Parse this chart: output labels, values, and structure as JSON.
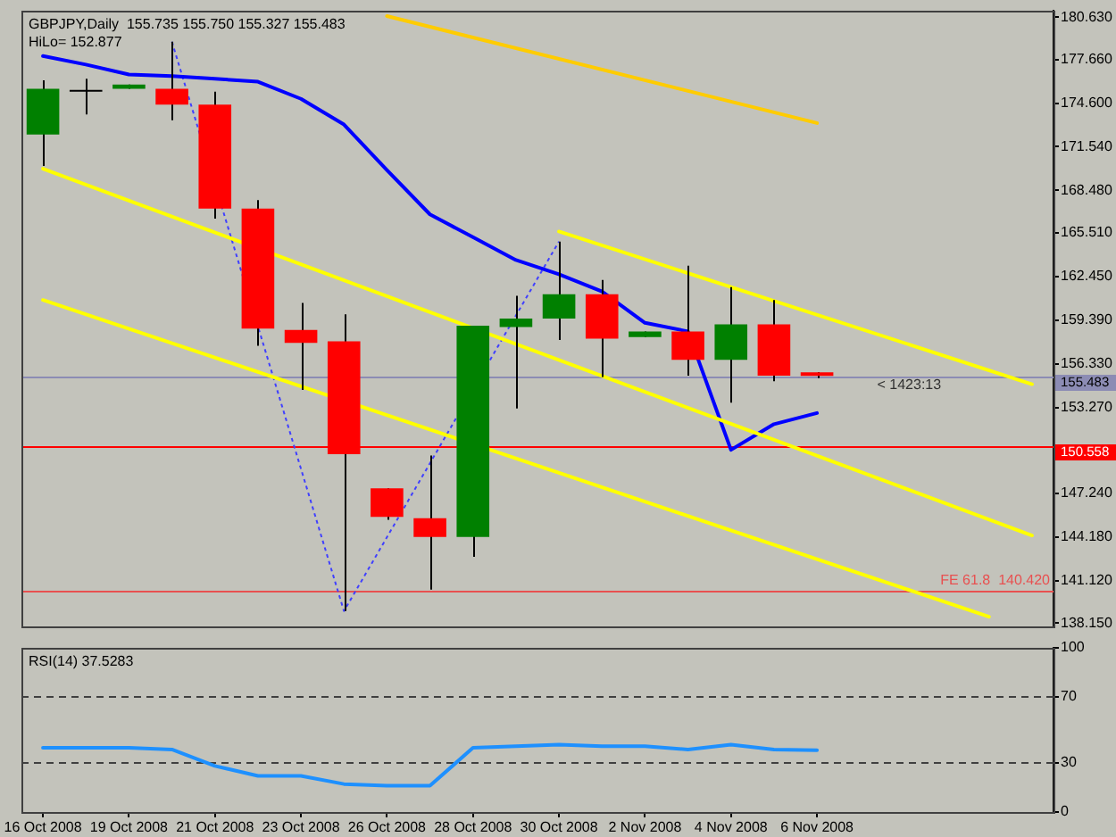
{
  "chart_data": [
    {
      "type": "candlestick",
      "title": "GBPJPY,Daily  155.735 155.750 155.327 155.483",
      "subtitle": "HiLo= 152.877",
      "categories": [
        null,
        null,
        null,
        null,
        null,
        null,
        null,
        null,
        null,
        null,
        null,
        null,
        null,
        null,
        null,
        null,
        null,
        null,
        null,
        null,
        null,
        null,
        null,
        null
      ],
      "ohlc": [
        [
          172.4,
          176.2,
          170.2,
          175.6
        ],
        [
          175.4,
          176.3,
          173.8,
          175.4
        ],
        [
          175.6,
          175.9,
          175.6,
          175.9
        ],
        [
          175.6,
          178.9,
          173.4,
          174.5
        ],
        [
          174.5,
          175.4,
          166.5,
          167.2
        ],
        [
          167.2,
          167.8,
          157.6,
          158.8
        ],
        [
          158.7,
          160.6,
          154.5,
          157.8
        ],
        [
          157.9,
          159.8,
          139.0,
          150.0
        ],
        [
          147.6,
          147.6,
          145.4,
          145.6
        ],
        [
          145.5,
          149.9,
          140.5,
          144.2
        ],
        [
          144.2,
          159.0,
          142.8,
          159.0
        ],
        [
          158.9,
          161.1,
          153.2,
          159.5
        ],
        [
          159.5,
          164.9,
          158.0,
          161.2
        ],
        [
          161.2,
          162.2,
          155.4,
          158.1
        ],
        [
          158.2,
          158.6,
          158.2,
          158.6
        ],
        [
          158.6,
          163.2,
          155.5,
          156.6
        ],
        [
          156.6,
          161.7,
          153.6,
          159.1
        ],
        [
          159.1,
          160.8,
          155.1,
          155.5
        ],
        [
          155.735,
          155.75,
          155.327,
          155.483
        ],
        null,
        null,
        null,
        null,
        null
      ],
      "colors": [
        "#008000",
        "#000000",
        "#008000",
        "#ff0000",
        "#ff0000",
        "#ff0000",
        "#ff0000",
        "#ff0000",
        "#ff0000",
        "#ff0000",
        "#008000",
        "#008000",
        "#008000",
        "#ff0000",
        "#008000",
        "#ff0000",
        "#008000",
        "#ff0000",
        "#ff0000",
        null,
        null,
        null,
        null,
        null
      ],
      "series": [
        {
          "type": "line",
          "color": "#ffcc00",
          "values": [
            null,
            null,
            null,
            null,
            null,
            null,
            null,
            null,
            180.7,
            null,
            null,
            null,
            null,
            null,
            null,
            null,
            null,
            null,
            173.2,
            null,
            null,
            null,
            null,
            null
          ]
        },
        {
          "type": "line",
          "color": "#ffff00",
          "values": [
            null,
            null,
            null,
            null,
            null,
            null,
            null,
            null,
            null,
            null,
            null,
            null,
            165.6,
            null,
            null,
            null,
            null,
            null,
            null,
            null,
            null,
            null,
            null,
            154.9
          ]
        },
        {
          "type": "line",
          "color": "#ffff00",
          "values": [
            170.0,
            null,
            null,
            null,
            null,
            null,
            null,
            null,
            null,
            null,
            null,
            null,
            null,
            null,
            null,
            null,
            null,
            null,
            null,
            null,
            null,
            null,
            null,
            144.3
          ]
        },
        {
          "type": "line",
          "color": "#ffff00",
          "values": [
            160.8,
            null,
            null,
            null,
            null,
            null,
            null,
            null,
            null,
            null,
            null,
            null,
            null,
            null,
            null,
            null,
            null,
            null,
            null,
            null,
            null,
            null,
            138.6,
            null
          ]
        },
        {
          "type": "line",
          "color": "#0000ff",
          "values": [
            177.9,
            177.3,
            176.6,
            176.5,
            176.3,
            176.1,
            174.9,
            173.1,
            169.9,
            166.8,
            165.2,
            163.6,
            162.6,
            161.4,
            159.2,
            158.6,
            150.3,
            152.1,
            152.877,
            null,
            null,
            null,
            null,
            null
          ]
        },
        {
          "type": "line",
          "color": "#4040ff",
          "line_style": "dotted",
          "values": [
            null,
            null,
            null,
            178.9,
            null,
            null,
            null,
            139.0,
            null,
            null,
            null,
            null,
            164.9,
            null,
            null,
            null,
            null,
            null,
            null,
            null,
            null,
            null,
            null,
            null
          ]
        }
      ],
      "ylim": [
        137.9,
        181.1
      ],
      "yticks": [
        {
          "value": 138.15,
          "label": "138.150"
        },
        {
          "value": 141.12,
          "label": "141.120"
        },
        {
          "value": 144.18,
          "label": "144.180"
        },
        {
          "value": 147.24,
          "label": "147.240"
        },
        {
          "value": 153.27,
          "label": "153.270"
        },
        {
          "value": 156.33,
          "label": "156.330"
        },
        {
          "value": 159.39,
          "label": "159.390"
        },
        {
          "value": 162.45,
          "label": "162.450"
        },
        {
          "value": 165.51,
          "label": "165.510"
        },
        {
          "value": 168.48,
          "label": "168.480"
        },
        {
          "value": 171.54,
          "label": "171.540"
        },
        {
          "value": 174.6,
          "label": "174.600"
        },
        {
          "value": 177.66,
          "label": "177.660"
        },
        {
          "value": 180.63,
          "label": "180.630"
        }
      ],
      "ref_lines": [
        {
          "axis": "y",
          "value": 155.483,
          "label": "155.483",
          "color": "#8c8cb4"
        },
        {
          "axis": "y",
          "value": 150.558,
          "label": "150.558",
          "color": "#ff0000"
        },
        {
          "axis": "y",
          "value": 140.42,
          "color": "#e85050"
        }
      ],
      "annotations": [
        "< 1423:13",
        {
          "text": "FE 61.8  140.420",
          "y": 140.42
        }
      ],
      "tick_labels": "y"
    },
    {
      "type": "line",
      "title": "RSI(14) 37.5283",
      "categories": [
        "16 Oct 2008",
        null,
        "19 Oct 2008",
        null,
        "21 Oct 2008",
        null,
        "23 Oct 2008",
        null,
        "26 Oct 2008",
        null,
        "28 Oct 2008",
        null,
        "30 Oct 2008",
        null,
        "2 Nov 2008",
        null,
        "4 Nov 2008",
        null,
        "6 Nov 2008",
        null,
        null,
        null,
        null,
        null
      ],
      "values": [
        39,
        39,
        39,
        38,
        28,
        22,
        22,
        17,
        16,
        16,
        39,
        40,
        41,
        40,
        40,
        38,
        41,
        38,
        37.5283,
        null,
        null,
        null,
        null,
        null
      ],
      "color": "#1e90ff",
      "ylim": [
        0,
        100
      ],
      "yticks": [
        0,
        30,
        70,
        100
      ],
      "ref_lines": [
        {
          "axis": "y",
          "value": 30,
          "color": "#404040",
          "line_style": "dashed"
        },
        {
          "axis": "y",
          "value": 70,
          "color": "#404040",
          "line_style": "dashed"
        }
      ]
    }
  ]
}
